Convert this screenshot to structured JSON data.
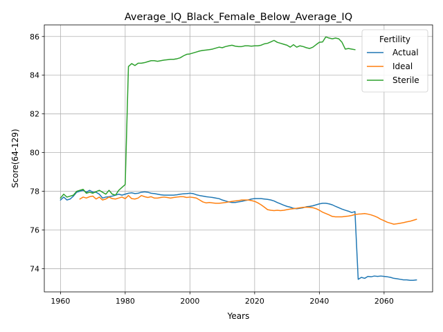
{
  "chart_data": {
    "type": "line",
    "title": "Average_IQ_Black_Female_Below_Average_IQ",
    "xlabel": "Years",
    "ylabel": "Score(64-129)",
    "xlim": [
      1955,
      2075
    ],
    "ylim": [
      72.8,
      86.6
    ],
    "x_ticks": [
      1960,
      1980,
      2000,
      2020,
      2040,
      2060
    ],
    "y_ticks": [
      74,
      76,
      78,
      80,
      82,
      84,
      86
    ],
    "grid": true,
    "legend": {
      "title": "Fertility",
      "placement": "top-right"
    },
    "series": [
      {
        "name": "Actual",
        "color": "#1f77b4",
        "points": [
          [
            1960,
            77.55
          ],
          [
            1961,
            77.7
          ],
          [
            1962,
            77.55
          ],
          [
            1963,
            77.6
          ],
          [
            1964,
            77.75
          ],
          [
            1965,
            77.95
          ],
          [
            1966,
            78.0
          ],
          [
            1967,
            78.05
          ],
          [
            1968,
            77.95
          ],
          [
            1969,
            78.05
          ],
          [
            1970,
            77.95
          ],
          [
            1971,
            77.95
          ],
          [
            1972,
            77.85
          ],
          [
            1973,
            77.65
          ],
          [
            1974,
            77.7
          ],
          [
            1975,
            77.72
          ],
          [
            1976,
            77.75
          ],
          [
            1977,
            77.8
          ],
          [
            1978,
            77.85
          ],
          [
            1979,
            77.8
          ],
          [
            1980,
            77.85
          ],
          [
            1981,
            77.9
          ],
          [
            1982,
            77.92
          ],
          [
            1983,
            77.88
          ],
          [
            1984,
            77.9
          ],
          [
            1985,
            77.95
          ],
          [
            1986,
            77.97
          ],
          [
            1987,
            77.95
          ],
          [
            1988,
            77.9
          ],
          [
            1989,
            77.88
          ],
          [
            1990,
            77.85
          ],
          [
            1991,
            77.82
          ],
          [
            1992,
            77.8
          ],
          [
            1993,
            77.8
          ],
          [
            1994,
            77.8
          ],
          [
            1995,
            77.8
          ],
          [
            1996,
            77.82
          ],
          [
            1997,
            77.85
          ],
          [
            1998,
            77.87
          ],
          [
            1999,
            77.88
          ],
          [
            2000,
            77.9
          ],
          [
            2001,
            77.88
          ],
          [
            2002,
            77.82
          ],
          [
            2003,
            77.78
          ],
          [
            2004,
            77.75
          ],
          [
            2005,
            77.72
          ],
          [
            2006,
            77.7
          ],
          [
            2007,
            77.68
          ],
          [
            2008,
            77.65
          ],
          [
            2009,
            77.62
          ],
          [
            2010,
            77.55
          ],
          [
            2011,
            77.5
          ],
          [
            2012,
            77.45
          ],
          [
            2013,
            77.42
          ],
          [
            2014,
            77.42
          ],
          [
            2015,
            77.45
          ],
          [
            2016,
            77.48
          ],
          [
            2017,
            77.52
          ],
          [
            2018,
            77.55
          ],
          [
            2019,
            77.6
          ],
          [
            2020,
            77.62
          ],
          [
            2021,
            77.62
          ],
          [
            2022,
            77.62
          ],
          [
            2023,
            77.6
          ],
          [
            2024,
            77.58
          ],
          [
            2025,
            77.55
          ],
          [
            2026,
            77.5
          ],
          [
            2027,
            77.42
          ],
          [
            2028,
            77.35
          ],
          [
            2029,
            77.28
          ],
          [
            2030,
            77.22
          ],
          [
            2031,
            77.18
          ],
          [
            2032,
            77.12
          ],
          [
            2033,
            77.1
          ],
          [
            2034,
            77.12
          ],
          [
            2035,
            77.15
          ],
          [
            2036,
            77.2
          ],
          [
            2037,
            77.22
          ],
          [
            2038,
            77.25
          ],
          [
            2039,
            77.3
          ],
          [
            2040,
            77.35
          ],
          [
            2041,
            77.38
          ],
          [
            2042,
            77.38
          ],
          [
            2043,
            77.35
          ],
          [
            2044,
            77.3
          ],
          [
            2045,
            77.22
          ],
          [
            2046,
            77.15
          ],
          [
            2047,
            77.08
          ],
          [
            2048,
            77.02
          ],
          [
            2049,
            76.97
          ],
          [
            2050,
            76.9
          ],
          [
            2051,
            76.95
          ],
          [
            2052,
            73.45
          ],
          [
            2053,
            73.55
          ],
          [
            2054,
            73.5
          ],
          [
            2055,
            73.6
          ],
          [
            2056,
            73.58
          ],
          [
            2057,
            73.62
          ],
          [
            2058,
            73.6
          ],
          [
            2059,
            73.62
          ],
          [
            2060,
            73.6
          ],
          [
            2061,
            73.58
          ],
          [
            2062,
            73.55
          ],
          [
            2063,
            73.5
          ],
          [
            2064,
            73.48
          ],
          [
            2065,
            73.45
          ],
          [
            2066,
            73.42
          ],
          [
            2067,
            73.42
          ],
          [
            2068,
            73.4
          ],
          [
            2069,
            73.4
          ],
          [
            2070,
            73.42
          ]
        ]
      },
      {
        "name": "Ideal",
        "color": "#ff7f0e",
        "points": [
          [
            1966,
            77.6
          ],
          [
            1967,
            77.7
          ],
          [
            1968,
            77.65
          ],
          [
            1969,
            77.72
          ],
          [
            1970,
            77.75
          ],
          [
            1971,
            77.6
          ],
          [
            1972,
            77.7
          ],
          [
            1973,
            77.55
          ],
          [
            1974,
            77.6
          ],
          [
            1975,
            77.7
          ],
          [
            1976,
            77.62
          ],
          [
            1977,
            77.6
          ],
          [
            1978,
            77.65
          ],
          [
            1979,
            77.7
          ],
          [
            1980,
            77.62
          ],
          [
            1981,
            77.78
          ],
          [
            1982,
            77.62
          ],
          [
            1983,
            77.6
          ],
          [
            1984,
            77.65
          ],
          [
            1985,
            77.78
          ],
          [
            1986,
            77.72
          ],
          [
            1987,
            77.68
          ],
          [
            1988,
            77.72
          ],
          [
            1989,
            77.65
          ],
          [
            1990,
            77.65
          ],
          [
            1991,
            77.68
          ],
          [
            1992,
            77.7
          ],
          [
            1993,
            77.68
          ],
          [
            1994,
            77.65
          ],
          [
            1995,
            77.68
          ],
          [
            1996,
            77.7
          ],
          [
            1997,
            77.72
          ],
          [
            1998,
            77.72
          ],
          [
            1999,
            77.68
          ],
          [
            2000,
            77.7
          ],
          [
            2001,
            77.68
          ],
          [
            2002,
            77.65
          ],
          [
            2003,
            77.55
          ],
          [
            2004,
            77.45
          ],
          [
            2005,
            77.4
          ],
          [
            2006,
            77.42
          ],
          [
            2007,
            77.4
          ],
          [
            2008,
            77.38
          ],
          [
            2009,
            77.38
          ],
          [
            2010,
            77.4
          ],
          [
            2011,
            77.42
          ],
          [
            2012,
            77.45
          ],
          [
            2013,
            77.48
          ],
          [
            2014,
            77.5
          ],
          [
            2015,
            77.52
          ],
          [
            2016,
            77.55
          ],
          [
            2017,
            77.55
          ],
          [
            2018,
            77.55
          ],
          [
            2019,
            77.52
          ],
          [
            2020,
            77.48
          ],
          [
            2021,
            77.4
          ],
          [
            2022,
            77.3
          ],
          [
            2023,
            77.18
          ],
          [
            2024,
            77.05
          ],
          [
            2025,
            77.02
          ],
          [
            2026,
            77.0
          ],
          [
            2027,
            77.02
          ],
          [
            2028,
            77.0
          ],
          [
            2029,
            77.02
          ],
          [
            2030,
            77.05
          ],
          [
            2031,
            77.08
          ],
          [
            2032,
            77.1
          ],
          [
            2033,
            77.12
          ],
          [
            2034,
            77.15
          ],
          [
            2035,
            77.17
          ],
          [
            2036,
            77.18
          ],
          [
            2037,
            77.17
          ],
          [
            2038,
            77.15
          ],
          [
            2039,
            77.1
          ],
          [
            2040,
            77.02
          ],
          [
            2041,
            76.92
          ],
          [
            2042,
            76.85
          ],
          [
            2043,
            76.78
          ],
          [
            2044,
            76.7
          ],
          [
            2045,
            76.68
          ],
          [
            2046,
            76.68
          ],
          [
            2047,
            76.68
          ],
          [
            2048,
            76.7
          ],
          [
            2049,
            76.72
          ],
          [
            2050,
            76.75
          ],
          [
            2051,
            76.8
          ],
          [
            2052,
            76.82
          ],
          [
            2053,
            76.83
          ],
          [
            2054,
            76.85
          ],
          [
            2055,
            76.82
          ],
          [
            2056,
            76.78
          ],
          [
            2057,
            76.72
          ],
          [
            2058,
            76.65
          ],
          [
            2059,
            76.55
          ],
          [
            2060,
            76.48
          ],
          [
            2061,
            76.4
          ],
          [
            2062,
            76.35
          ],
          [
            2063,
            76.3
          ],
          [
            2064,
            76.32
          ],
          [
            2065,
            76.35
          ],
          [
            2066,
            76.38
          ],
          [
            2067,
            76.42
          ],
          [
            2068,
            76.45
          ],
          [
            2069,
            76.5
          ],
          [
            2070,
            76.55
          ]
        ]
      },
      {
        "name": "Sterile",
        "color": "#2ca02c",
        "points": [
          [
            1960,
            77.65
          ],
          [
            1961,
            77.85
          ],
          [
            1962,
            77.7
          ],
          [
            1963,
            77.75
          ],
          [
            1964,
            77.8
          ],
          [
            1965,
            78.0
          ],
          [
            1966,
            78.05
          ],
          [
            1967,
            78.1
          ],
          [
            1968,
            77.9
          ],
          [
            1969,
            77.95
          ],
          [
            1970,
            77.9
          ],
          [
            1971,
            77.98
          ],
          [
            1972,
            78.05
          ],
          [
            1973,
            77.95
          ],
          [
            1974,
            77.85
          ],
          [
            1975,
            78.05
          ],
          [
            1976,
            77.85
          ],
          [
            1977,
            77.8
          ],
          [
            1978,
            78.05
          ],
          [
            1979,
            78.2
          ],
          [
            1980,
            78.35
          ],
          [
            1981,
            84.45
          ],
          [
            1982,
            84.6
          ],
          [
            1983,
            84.5
          ],
          [
            1984,
            84.62
          ],
          [
            1985,
            84.62
          ],
          [
            1986,
            84.65
          ],
          [
            1987,
            84.7
          ],
          [
            1988,
            84.75
          ],
          [
            1989,
            84.75
          ],
          [
            1990,
            84.72
          ],
          [
            1991,
            84.75
          ],
          [
            1992,
            84.78
          ],
          [
            1993,
            84.8
          ],
          [
            1994,
            84.82
          ],
          [
            1995,
            84.82
          ],
          [
            1996,
            84.85
          ],
          [
            1997,
            84.9
          ],
          [
            1998,
            85.0
          ],
          [
            1999,
            85.08
          ],
          [
            2000,
            85.1
          ],
          [
            2001,
            85.15
          ],
          [
            2002,
            85.2
          ],
          [
            2003,
            85.25
          ],
          [
            2004,
            85.28
          ],
          [
            2005,
            85.3
          ],
          [
            2006,
            85.32
          ],
          [
            2007,
            85.35
          ],
          [
            2008,
            85.4
          ],
          [
            2009,
            85.45
          ],
          [
            2010,
            85.42
          ],
          [
            2011,
            85.48
          ],
          [
            2012,
            85.52
          ],
          [
            2013,
            85.55
          ],
          [
            2014,
            85.5
          ],
          [
            2015,
            85.48
          ],
          [
            2016,
            85.48
          ],
          [
            2017,
            85.52
          ],
          [
            2018,
            85.52
          ],
          [
            2019,
            85.5
          ],
          [
            2020,
            85.52
          ],
          [
            2021,
            85.52
          ],
          [
            2022,
            85.55
          ],
          [
            2023,
            85.62
          ],
          [
            2024,
            85.65
          ],
          [
            2025,
            85.72
          ],
          [
            2026,
            85.8
          ],
          [
            2027,
            85.7
          ],
          [
            2028,
            85.65
          ],
          [
            2029,
            85.6
          ],
          [
            2030,
            85.55
          ],
          [
            2031,
            85.45
          ],
          [
            2032,
            85.58
          ],
          [
            2033,
            85.45
          ],
          [
            2034,
            85.52
          ],
          [
            2035,
            85.48
          ],
          [
            2036,
            85.42
          ],
          [
            2037,
            85.38
          ],
          [
            2038,
            85.45
          ],
          [
            2039,
            85.58
          ],
          [
            2040,
            85.7
          ],
          [
            2041,
            85.72
          ],
          [
            2042,
            85.98
          ],
          [
            2043,
            85.92
          ],
          [
            2044,
            85.88
          ],
          [
            2045,
            85.92
          ],
          [
            2046,
            85.88
          ],
          [
            2047,
            85.7
          ],
          [
            2048,
            85.35
          ],
          [
            2049,
            85.38
          ],
          [
            2050,
            85.35
          ],
          [
            2051,
            85.32
          ]
        ]
      }
    ]
  }
}
